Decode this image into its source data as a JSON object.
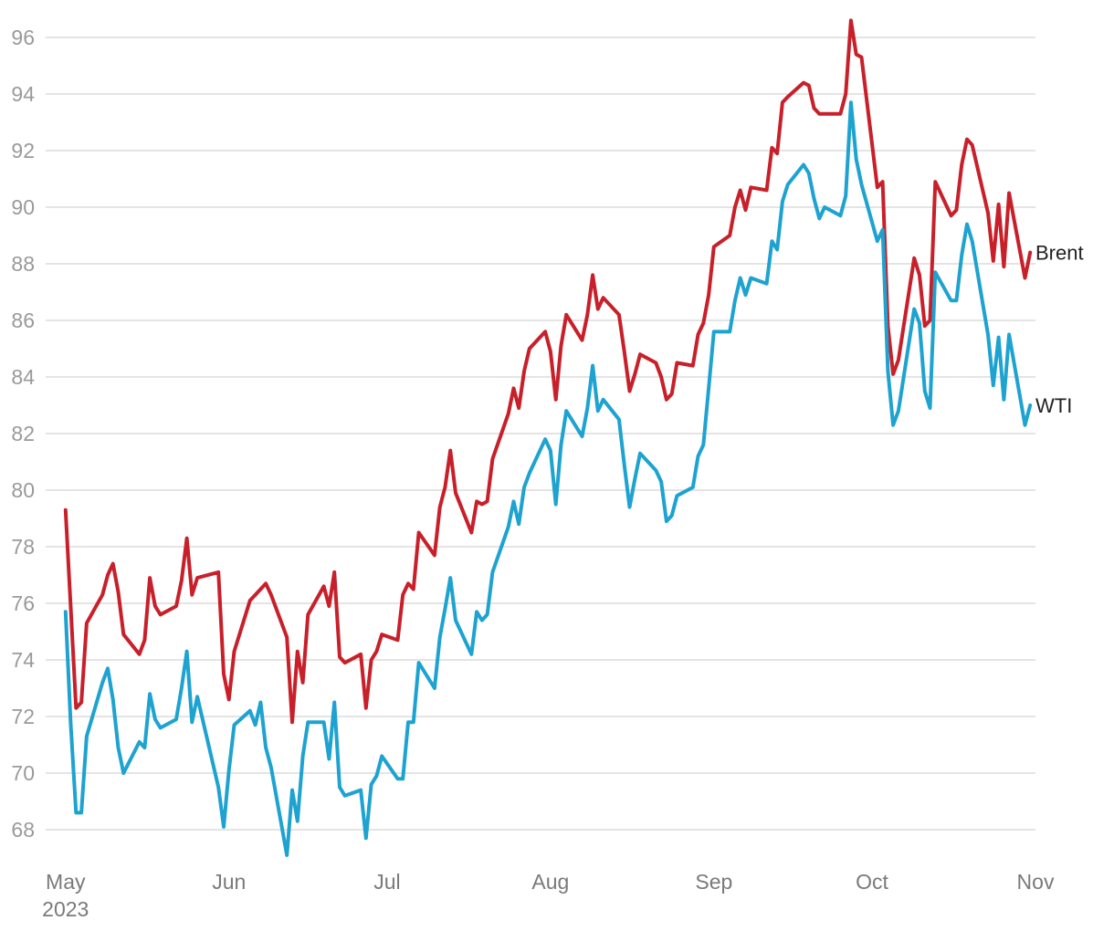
{
  "chart_data": {
    "type": "line",
    "title": "",
    "xlabel": "",
    "ylabel": "",
    "ylim": [
      67,
      97
    ],
    "yticks": [
      68,
      70,
      72,
      74,
      76,
      78,
      80,
      82,
      84,
      86,
      88,
      90,
      92,
      94,
      96
    ],
    "xlim": [
      "2023-04-30",
      "2023-11-01"
    ],
    "xticks": [
      {
        "date": "2023-05-01",
        "label": "May",
        "sublabel": "2023"
      },
      {
        "date": "2023-06-01",
        "label": "Jun",
        "sublabel": ""
      },
      {
        "date": "2023-07-01",
        "label": "Jul",
        "sublabel": ""
      },
      {
        "date": "2023-08-01",
        "label": "Aug",
        "sublabel": ""
      },
      {
        "date": "2023-09-01",
        "label": "Sep",
        "sublabel": ""
      },
      {
        "date": "2023-10-01",
        "label": "Oct",
        "sublabel": ""
      },
      {
        "date": "2023-11-01",
        "label": "Nov",
        "sublabel": ""
      }
    ],
    "grid": true,
    "legend": "end-of-line labels",
    "series": [
      {
        "name": "Brent",
        "color": "#c8202a",
        "data": [
          [
            "2023-05-01",
            79.3
          ],
          [
            "2023-05-03",
            72.3
          ],
          [
            "2023-05-04",
            72.5
          ],
          [
            "2023-05-05",
            75.3
          ],
          [
            "2023-05-08",
            76.3
          ],
          [
            "2023-05-09",
            77.0
          ],
          [
            "2023-05-10",
            77.4
          ],
          [
            "2023-05-11",
            76.4
          ],
          [
            "2023-05-12",
            74.9
          ],
          [
            "2023-05-15",
            74.2
          ],
          [
            "2023-05-16",
            74.7
          ],
          [
            "2023-05-17",
            76.9
          ],
          [
            "2023-05-18",
            75.9
          ],
          [
            "2023-05-19",
            75.6
          ],
          [
            "2023-05-22",
            75.9
          ],
          [
            "2023-05-23",
            76.8
          ],
          [
            "2023-05-24",
            78.3
          ],
          [
            "2023-05-25",
            76.3
          ],
          [
            "2023-05-26",
            76.9
          ],
          [
            "2023-05-30",
            77.1
          ],
          [
            "2023-05-31",
            73.5
          ],
          [
            "2023-06-01",
            72.6
          ],
          [
            "2023-06-02",
            74.3
          ],
          [
            "2023-06-05",
            76.1
          ],
          [
            "2023-06-06",
            76.3
          ],
          [
            "2023-06-07",
            76.5
          ],
          [
            "2023-06-08",
            76.7
          ],
          [
            "2023-06-09",
            76.3
          ],
          [
            "2023-06-12",
            74.8
          ],
          [
            "2023-06-13",
            71.8
          ],
          [
            "2023-06-14",
            74.3
          ],
          [
            "2023-06-15",
            73.2
          ],
          [
            "2023-06-16",
            75.6
          ],
          [
            "2023-06-19",
            76.6
          ],
          [
            "2023-06-20",
            75.9
          ],
          [
            "2023-06-21",
            77.1
          ],
          [
            "2023-06-22",
            74.1
          ],
          [
            "2023-06-23",
            73.9
          ],
          [
            "2023-06-26",
            74.2
          ],
          [
            "2023-06-27",
            72.3
          ],
          [
            "2023-06-28",
            74.0
          ],
          [
            "2023-06-29",
            74.3
          ],
          [
            "2023-06-30",
            74.9
          ],
          [
            "2023-07-03",
            74.7
          ],
          [
            "2023-07-04",
            76.3
          ],
          [
            "2023-07-05",
            76.7
          ],
          [
            "2023-07-06",
            76.5
          ],
          [
            "2023-07-07",
            78.5
          ],
          [
            "2023-07-10",
            77.7
          ],
          [
            "2023-07-11",
            79.4
          ],
          [
            "2023-07-12",
            80.1
          ],
          [
            "2023-07-13",
            81.4
          ],
          [
            "2023-07-14",
            79.9
          ],
          [
            "2023-07-17",
            78.5
          ],
          [
            "2023-07-18",
            79.6
          ],
          [
            "2023-07-19",
            79.5
          ],
          [
            "2023-07-20",
            79.6
          ],
          [
            "2023-07-21",
            81.1
          ],
          [
            "2023-07-24",
            82.7
          ],
          [
            "2023-07-25",
            83.6
          ],
          [
            "2023-07-26",
            82.9
          ],
          [
            "2023-07-27",
            84.2
          ],
          [
            "2023-07-28",
            85.0
          ],
          [
            "2023-07-31",
            85.6
          ],
          [
            "2023-08-01",
            84.9
          ],
          [
            "2023-08-02",
            83.2
          ],
          [
            "2023-08-03",
            85.1
          ],
          [
            "2023-08-04",
            86.2
          ],
          [
            "2023-08-07",
            85.3
          ],
          [
            "2023-08-08",
            86.2
          ],
          [
            "2023-08-09",
            87.6
          ],
          [
            "2023-08-10",
            86.4
          ],
          [
            "2023-08-11",
            86.8
          ],
          [
            "2023-08-14",
            86.2
          ],
          [
            "2023-08-15",
            84.9
          ],
          [
            "2023-08-16",
            83.5
          ],
          [
            "2023-08-17",
            84.1
          ],
          [
            "2023-08-18",
            84.8
          ],
          [
            "2023-08-21",
            84.5
          ],
          [
            "2023-08-22",
            84.0
          ],
          [
            "2023-08-23",
            83.2
          ],
          [
            "2023-08-24",
            83.4
          ],
          [
            "2023-08-25",
            84.5
          ],
          [
            "2023-08-28",
            84.4
          ],
          [
            "2023-08-29",
            85.5
          ],
          [
            "2023-08-30",
            85.9
          ],
          [
            "2023-08-31",
            86.9
          ],
          [
            "2023-09-01",
            88.6
          ],
          [
            "2023-09-04",
            89.0
          ],
          [
            "2023-09-05",
            90.0
          ],
          [
            "2023-09-06",
            90.6
          ],
          [
            "2023-09-07",
            89.9
          ],
          [
            "2023-09-08",
            90.7
          ],
          [
            "2023-09-11",
            90.6
          ],
          [
            "2023-09-12",
            92.1
          ],
          [
            "2023-09-13",
            91.9
          ],
          [
            "2023-09-14",
            93.7
          ],
          [
            "2023-09-15",
            93.9
          ],
          [
            "2023-09-18",
            94.4
          ],
          [
            "2023-09-19",
            94.3
          ],
          [
            "2023-09-20",
            93.5
          ],
          [
            "2023-09-21",
            93.3
          ],
          [
            "2023-09-22",
            93.3
          ],
          [
            "2023-09-25",
            93.3
          ],
          [
            "2023-09-26",
            94.0
          ],
          [
            "2023-09-27",
            96.6
          ],
          [
            "2023-09-28",
            95.4
          ],
          [
            "2023-09-29",
            95.3
          ],
          [
            "2023-10-02",
            90.7
          ],
          [
            "2023-10-03",
            90.9
          ],
          [
            "2023-10-04",
            85.8
          ],
          [
            "2023-10-05",
            84.1
          ],
          [
            "2023-10-06",
            84.6
          ],
          [
            "2023-10-09",
            88.2
          ],
          [
            "2023-10-10",
            87.6
          ],
          [
            "2023-10-11",
            85.8
          ],
          [
            "2023-10-12",
            86.0
          ],
          [
            "2023-10-13",
            90.9
          ],
          [
            "2023-10-16",
            89.7
          ],
          [
            "2023-10-17",
            89.9
          ],
          [
            "2023-10-18",
            91.5
          ],
          [
            "2023-10-19",
            92.4
          ],
          [
            "2023-10-20",
            92.2
          ],
          [
            "2023-10-23",
            89.8
          ],
          [
            "2023-10-24",
            88.1
          ],
          [
            "2023-10-25",
            90.1
          ],
          [
            "2023-10-26",
            87.9
          ],
          [
            "2023-10-27",
            90.5
          ],
          [
            "2023-10-30",
            87.5
          ],
          [
            "2023-10-31",
            88.4
          ]
        ]
      },
      {
        "name": "WTI",
        "color": "#1ea3d1",
        "data": [
          [
            "2023-05-01",
            75.7
          ],
          [
            "2023-05-02",
            71.7
          ],
          [
            "2023-05-03",
            68.6
          ],
          [
            "2023-05-04",
            68.6
          ],
          [
            "2023-05-05",
            71.3
          ],
          [
            "2023-05-08",
            73.2
          ],
          [
            "2023-05-09",
            73.7
          ],
          [
            "2023-05-10",
            72.6
          ],
          [
            "2023-05-11",
            70.9
          ],
          [
            "2023-05-12",
            70.0
          ],
          [
            "2023-05-15",
            71.1
          ],
          [
            "2023-05-16",
            70.9
          ],
          [
            "2023-05-17",
            72.8
          ],
          [
            "2023-05-18",
            71.9
          ],
          [
            "2023-05-19",
            71.6
          ],
          [
            "2023-05-22",
            71.9
          ],
          [
            "2023-05-23",
            73.0
          ],
          [
            "2023-05-24",
            74.3
          ],
          [
            "2023-05-25",
            71.8
          ],
          [
            "2023-05-26",
            72.7
          ],
          [
            "2023-05-30",
            69.5
          ],
          [
            "2023-05-31",
            68.1
          ],
          [
            "2023-06-01",
            70.1
          ],
          [
            "2023-06-02",
            71.7
          ],
          [
            "2023-06-05",
            72.2
          ],
          [
            "2023-06-06",
            71.7
          ],
          [
            "2023-06-07",
            72.5
          ],
          [
            "2023-06-08",
            70.9
          ],
          [
            "2023-06-09",
            70.2
          ],
          [
            "2023-06-12",
            67.1
          ],
          [
            "2023-06-13",
            69.4
          ],
          [
            "2023-06-14",
            68.3
          ],
          [
            "2023-06-15",
            70.6
          ],
          [
            "2023-06-16",
            71.8
          ],
          [
            "2023-06-19",
            71.8
          ],
          [
            "2023-06-20",
            70.5
          ],
          [
            "2023-06-21",
            72.5
          ],
          [
            "2023-06-22",
            69.5
          ],
          [
            "2023-06-23",
            69.2
          ],
          [
            "2023-06-26",
            69.4
          ],
          [
            "2023-06-27",
            67.7
          ],
          [
            "2023-06-28",
            69.6
          ],
          [
            "2023-06-29",
            69.9
          ],
          [
            "2023-06-30",
            70.6
          ],
          [
            "2023-07-03",
            69.8
          ],
          [
            "2023-07-04",
            69.8
          ],
          [
            "2023-07-05",
            71.8
          ],
          [
            "2023-07-06",
            71.8
          ],
          [
            "2023-07-07",
            73.9
          ],
          [
            "2023-07-10",
            73.0
          ],
          [
            "2023-07-11",
            74.8
          ],
          [
            "2023-07-12",
            75.8
          ],
          [
            "2023-07-13",
            76.9
          ],
          [
            "2023-07-14",
            75.4
          ],
          [
            "2023-07-17",
            74.2
          ],
          [
            "2023-07-18",
            75.7
          ],
          [
            "2023-07-19",
            75.4
          ],
          [
            "2023-07-20",
            75.6
          ],
          [
            "2023-07-21",
            77.1
          ],
          [
            "2023-07-24",
            78.7
          ],
          [
            "2023-07-25",
            79.6
          ],
          [
            "2023-07-26",
            78.8
          ],
          [
            "2023-07-27",
            80.1
          ],
          [
            "2023-07-28",
            80.6
          ],
          [
            "2023-07-31",
            81.8
          ],
          [
            "2023-08-01",
            81.4
          ],
          [
            "2023-08-02",
            79.5
          ],
          [
            "2023-08-03",
            81.6
          ],
          [
            "2023-08-04",
            82.8
          ],
          [
            "2023-08-07",
            81.9
          ],
          [
            "2023-08-08",
            82.9
          ],
          [
            "2023-08-09",
            84.4
          ],
          [
            "2023-08-10",
            82.8
          ],
          [
            "2023-08-11",
            83.2
          ],
          [
            "2023-08-14",
            82.5
          ],
          [
            "2023-08-15",
            80.9
          ],
          [
            "2023-08-16",
            79.4
          ],
          [
            "2023-08-17",
            80.4
          ],
          [
            "2023-08-18",
            81.3
          ],
          [
            "2023-08-21",
            80.7
          ],
          [
            "2023-08-22",
            80.3
          ],
          [
            "2023-08-23",
            78.9
          ],
          [
            "2023-08-24",
            79.1
          ],
          [
            "2023-08-25",
            79.8
          ],
          [
            "2023-08-28",
            80.1
          ],
          [
            "2023-08-29",
            81.2
          ],
          [
            "2023-08-30",
            81.6
          ],
          [
            "2023-08-31",
            83.6
          ],
          [
            "2023-09-01",
            85.6
          ],
          [
            "2023-09-04",
            85.6
          ],
          [
            "2023-09-05",
            86.7
          ],
          [
            "2023-09-06",
            87.5
          ],
          [
            "2023-09-07",
            86.9
          ],
          [
            "2023-09-08",
            87.5
          ],
          [
            "2023-09-11",
            87.3
          ],
          [
            "2023-09-12",
            88.8
          ],
          [
            "2023-09-13",
            88.5
          ],
          [
            "2023-09-14",
            90.2
          ],
          [
            "2023-09-15",
            90.8
          ],
          [
            "2023-09-18",
            91.5
          ],
          [
            "2023-09-19",
            91.2
          ],
          [
            "2023-09-20",
            90.3
          ],
          [
            "2023-09-21",
            89.6
          ],
          [
            "2023-09-22",
            90.0
          ],
          [
            "2023-09-25",
            89.7
          ],
          [
            "2023-09-26",
            90.4
          ],
          [
            "2023-09-27",
            93.7
          ],
          [
            "2023-09-28",
            91.7
          ],
          [
            "2023-09-29",
            90.8
          ],
          [
            "2023-10-02",
            88.8
          ],
          [
            "2023-10-03",
            89.2
          ],
          [
            "2023-10-04",
            84.2
          ],
          [
            "2023-10-05",
            82.3
          ],
          [
            "2023-10-06",
            82.8
          ],
          [
            "2023-10-09",
            86.4
          ],
          [
            "2023-10-10",
            85.9
          ],
          [
            "2023-10-11",
            83.5
          ],
          [
            "2023-10-12",
            82.9
          ],
          [
            "2023-10-13",
            87.7
          ],
          [
            "2023-10-16",
            86.7
          ],
          [
            "2023-10-17",
            86.7
          ],
          [
            "2023-10-18",
            88.3
          ],
          [
            "2023-10-19",
            89.4
          ],
          [
            "2023-10-20",
            88.8
          ],
          [
            "2023-10-23",
            85.5
          ],
          [
            "2023-10-24",
            83.7
          ],
          [
            "2023-10-25",
            85.4
          ],
          [
            "2023-10-26",
            83.2
          ],
          [
            "2023-10-27",
            85.5
          ],
          [
            "2023-10-30",
            82.3
          ],
          [
            "2023-10-31",
            83.0
          ]
        ]
      }
    ]
  }
}
